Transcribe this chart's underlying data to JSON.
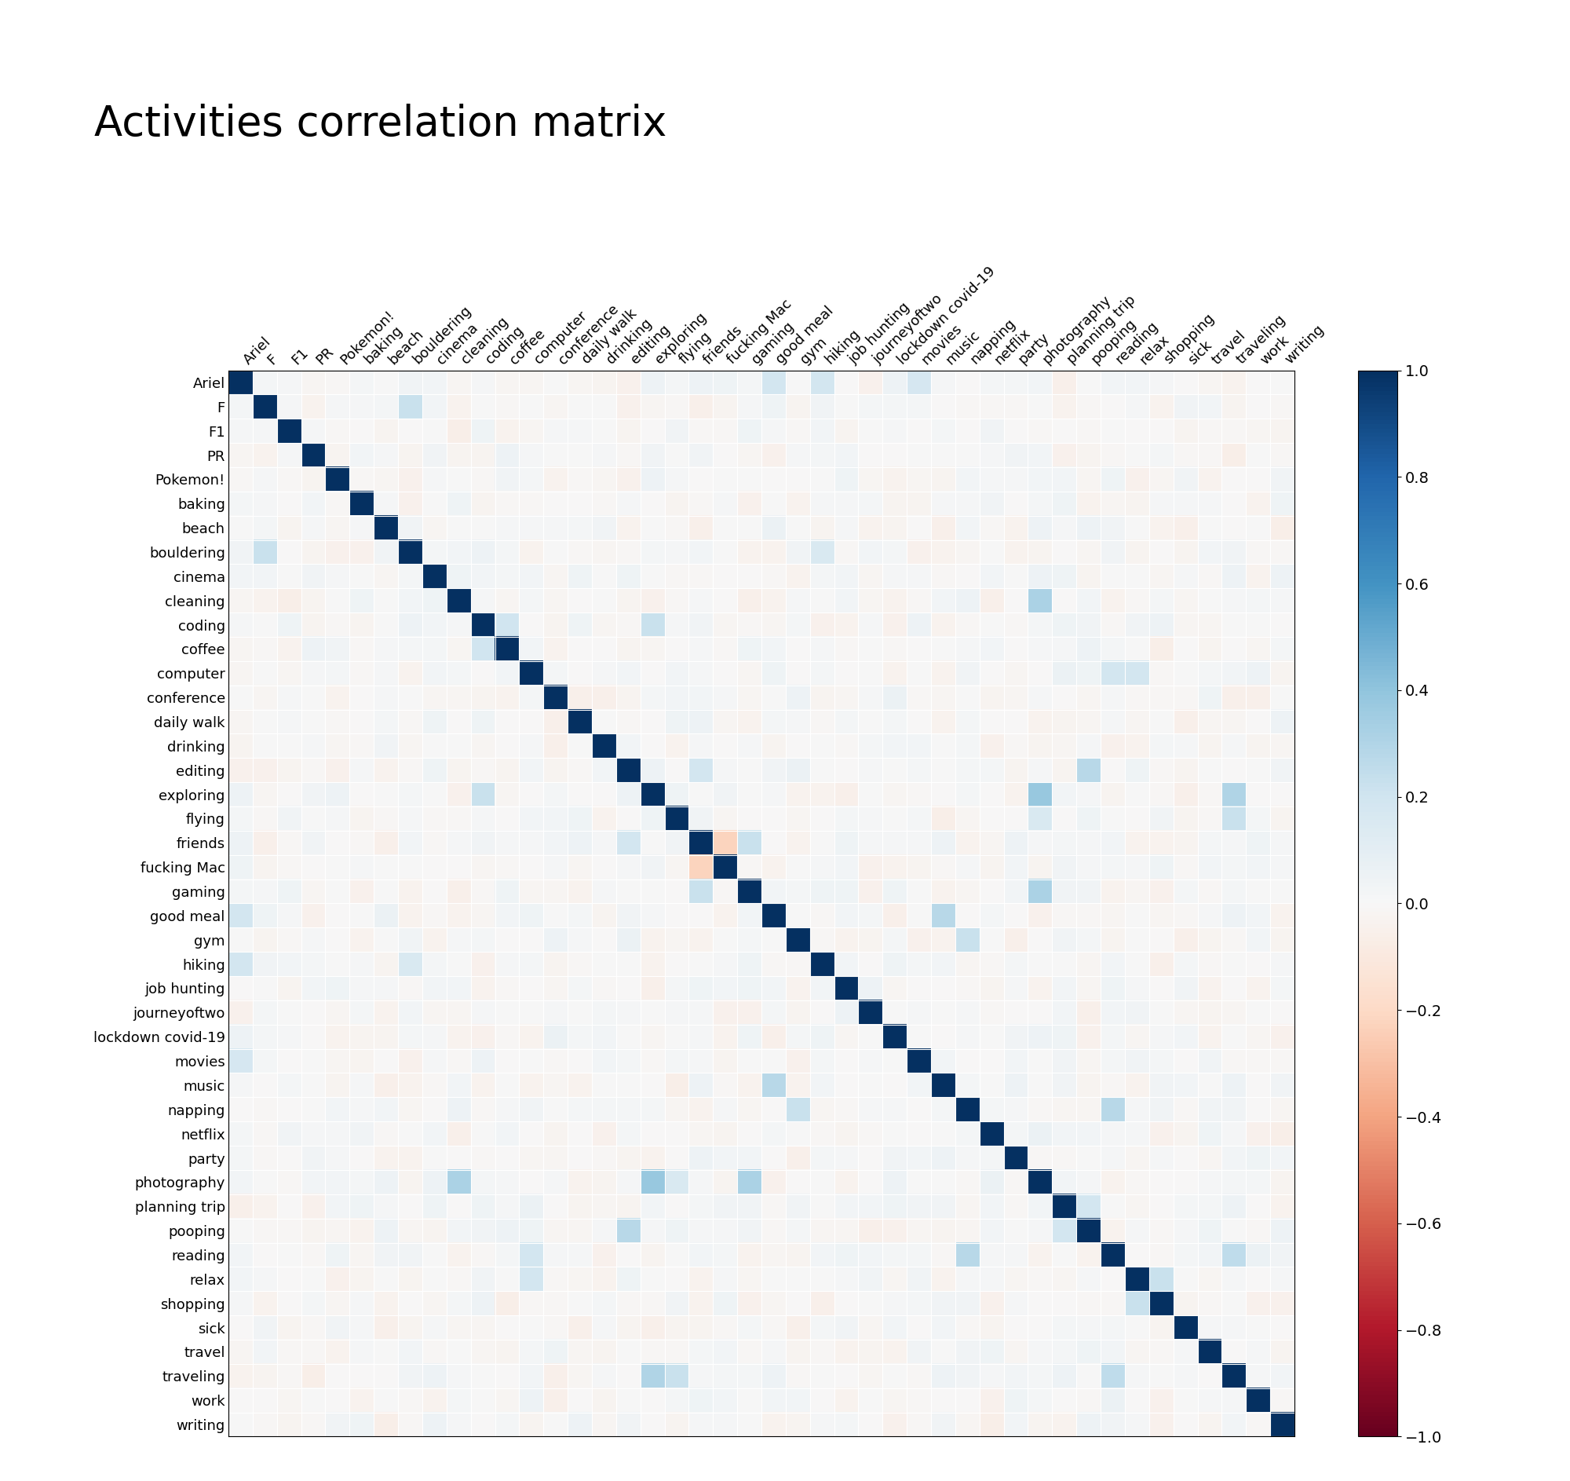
{
  "title": "Activities correlation matrix",
  "labels": [
    "Ariel",
    "F",
    "F1",
    "PR",
    "Pokemon!",
    "baking",
    "beach",
    "bouldering",
    "cinema",
    "cleaning",
    "coding",
    "coffee",
    "computer",
    "conference",
    "daily walk",
    "drinking",
    "editing",
    "exploring",
    "flying",
    "friends",
    "fucking Mac",
    "gaming",
    "good meal",
    "gym",
    "hiking",
    "job hunting",
    "journeyoftwo",
    "lockdown covid-19",
    "movies",
    "music",
    "napping",
    "netflix",
    "party",
    "photography",
    "planning trip",
    "pooping",
    "reading",
    "relax",
    "shopping",
    "sick",
    "travel",
    "traveling",
    "work",
    "writing"
  ],
  "background_color": "#ffffff",
  "title_fontsize": 38,
  "tick_fontsize": 13,
  "cmap": "RdBu",
  "vmin": -1,
  "vmax": 1,
  "notable_corrs": [
    [
      "F",
      "bouldering",
      0.22
    ],
    [
      "Ariel",
      "good meal",
      0.18
    ],
    [
      "Ariel",
      "hiking",
      0.18
    ],
    [
      "Ariel",
      "movies",
      0.17
    ],
    [
      "coding",
      "exploring",
      0.22
    ],
    [
      "coding",
      "coffee",
      0.2
    ],
    [
      "editing",
      "friends",
      0.18
    ],
    [
      "friends",
      "gaming",
      0.22
    ],
    [
      "friends",
      "fucking Mac",
      -0.22
    ],
    [
      "good meal",
      "music",
      0.28
    ],
    [
      "gym",
      "napping",
      0.22
    ],
    [
      "cleaning",
      "photography",
      0.32
    ],
    [
      "exploring",
      "photography",
      0.38
    ],
    [
      "exploring",
      "traveling",
      0.3
    ],
    [
      "reading",
      "traveling",
      0.25
    ],
    [
      "photography",
      "gaming",
      0.32
    ],
    [
      "pooping",
      "editing",
      0.28
    ],
    [
      "napping",
      "reading",
      0.28
    ],
    [
      "relax",
      "shopping",
      0.22
    ],
    [
      "computer",
      "reading",
      0.18
    ],
    [
      "computer",
      "relax",
      0.18
    ],
    [
      "planning trip",
      "pooping",
      0.18
    ],
    [
      "hiking",
      "bouldering",
      0.15
    ],
    [
      "traveling",
      "flying",
      0.22
    ],
    [
      "photography",
      "flying",
      0.15
    ]
  ]
}
